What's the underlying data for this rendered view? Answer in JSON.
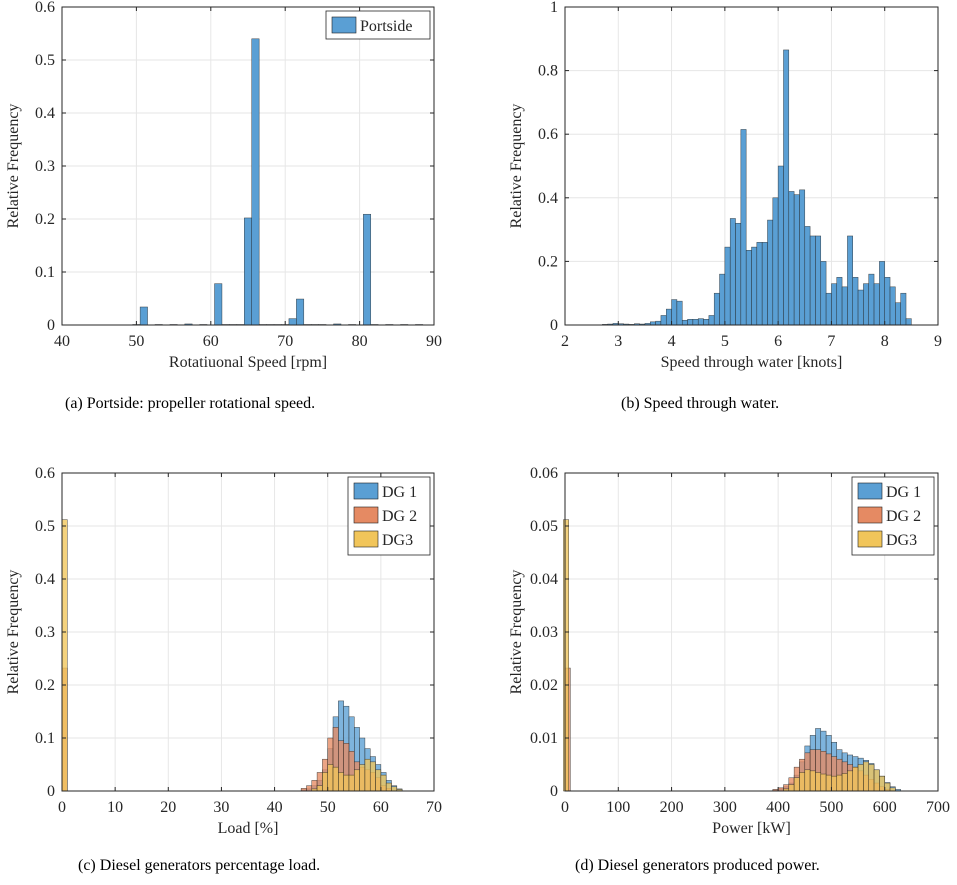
{
  "captions": [
    "(a)  Portside: propeller rotational speed.",
    "(b)  Speed through water.",
    "(c)  Diesel generators percentage load.",
    "(d)  Diesel generators produced power."
  ],
  "chart_data": [
    {
      "type": "bar",
      "xlabel": "Rotatiuonal Speed [rpm]",
      "ylabel": "Relative Frequency",
      "xlim": [
        40,
        90
      ],
      "ylim": [
        0,
        0.6
      ],
      "xticks": [
        40,
        50,
        60,
        70,
        80,
        90
      ],
      "yticks": [
        0,
        0.1,
        0.2,
        0.3,
        0.4,
        0.5,
        0.6
      ],
      "grid": true,
      "legend_position": "top-right",
      "bin_width": 1,
      "series": [
        {
          "name": "Portside",
          "color": "#5a9fd4",
          "x": [
            50,
            51,
            53,
            55,
            57,
            59,
            61,
            62,
            63,
            64,
            65,
            66,
            67,
            68,
            69,
            70,
            71,
            72,
            73,
            74,
            75,
            77,
            79,
            81,
            82,
            84,
            86,
            88
          ],
          "values": [
            0.001,
            0.034,
            0.001,
            0.001,
            0.002,
            0.001,
            0.078,
            0.001,
            0.001,
            0.001,
            0.202,
            0.54,
            0.001,
            0.001,
            0.001,
            0.001,
            0.012,
            0.049,
            0.001,
            0.001,
            0.001,
            0.002,
            0.001,
            0.209,
            0.001,
            0.001,
            0.001,
            0.001
          ]
        }
      ]
    },
    {
      "type": "bar",
      "xlabel": "Speed through water [knots]",
      "ylabel": "Relative Frequency",
      "xlim": [
        2,
        9
      ],
      "ylim": [
        0,
        1
      ],
      "xticks": [
        2,
        3,
        4,
        5,
        6,
        7,
        8,
        9
      ],
      "yticks": [
        0,
        0.2,
        0.4,
        0.6,
        0.8,
        1
      ],
      "grid": true,
      "bin_width": 0.1,
      "series": [
        {
          "name": "",
          "color": "#5a9fd4",
          "x": [
            2.75,
            2.85,
            2.95,
            3.05,
            3.15,
            3.25,
            3.35,
            3.45,
            3.55,
            3.65,
            3.75,
            3.85,
            3.95,
            4.05,
            4.15,
            4.25,
            4.35,
            4.45,
            4.55,
            4.65,
            4.75,
            4.85,
            4.95,
            5.05,
            5.15,
            5.25,
            5.35,
            5.45,
            5.55,
            5.65,
            5.75,
            5.85,
            5.95,
            6.05,
            6.15,
            6.25,
            6.35,
            6.45,
            6.55,
            6.65,
            6.75,
            6.85,
            6.95,
            7.05,
            7.15,
            7.25,
            7.35,
            7.45,
            7.55,
            7.65,
            7.75,
            7.85,
            7.95,
            8.05,
            8.15,
            8.25,
            8.35,
            8.45
          ],
          "values": [
            0.002,
            0.003,
            0.005,
            0.004,
            0.003,
            0.002,
            0.004,
            0.003,
            0.005,
            0.01,
            0.012,
            0.03,
            0.05,
            0.08,
            0.075,
            0.015,
            0.018,
            0.018,
            0.02,
            0.018,
            0.03,
            0.1,
            0.16,
            0.245,
            0.335,
            0.32,
            0.615,
            0.235,
            0.245,
            0.26,
            0.26,
            0.33,
            0.4,
            0.5,
            0.865,
            0.42,
            0.41,
            0.425,
            0.31,
            0.28,
            0.28,
            0.2,
            0.1,
            0.13,
            0.15,
            0.12,
            0.28,
            0.15,
            0.11,
            0.13,
            0.16,
            0.13,
            0.2,
            0.15,
            0.12,
            0.07,
            0.1,
            0.02
          ]
        }
      ]
    },
    {
      "type": "bar",
      "xlabel": "Load [%]",
      "ylabel": "Relative Frequency",
      "xlim": [
        0,
        70
      ],
      "ylim": [
        0,
        0.6
      ],
      "xticks": [
        0,
        10,
        20,
        30,
        40,
        50,
        60,
        70
      ],
      "yticks": [
        0,
        0.1,
        0.2,
        0.3,
        0.4,
        0.5,
        0.6
      ],
      "grid": true,
      "legend_position": "top-right",
      "bin_width": 1,
      "series": [
        {
          "name": "DG 1",
          "color": "#5a9fd4",
          "x": [
            0.5,
            45.5,
            46.5,
            47.5,
            48.5,
            49.5,
            50.5,
            51.5,
            52.5,
            53.5,
            54.5,
            55.5,
            56.5,
            57.5,
            58.5,
            59.5,
            60.5,
            61.5,
            62.5,
            63.5
          ],
          "values": [
            0.001,
            0.002,
            0.004,
            0.01,
            0.02,
            0.04,
            0.08,
            0.14,
            0.17,
            0.16,
            0.14,
            0.12,
            0.1,
            0.08,
            0.065,
            0.05,
            0.035,
            0.02,
            0.01,
            0.004
          ]
        },
        {
          "name": "DG 2",
          "color": "#e58a63",
          "x": [
            0.5,
            45.5,
            46.5,
            47.5,
            48.5,
            49.5,
            50.5,
            51.5,
            52.5,
            53.5,
            54.5,
            55.5,
            56.5,
            57.5,
            58.5,
            59.5,
            60.5,
            61.5
          ],
          "values": [
            0.232,
            0.005,
            0.01,
            0.02,
            0.035,
            0.06,
            0.1,
            0.12,
            0.095,
            0.09,
            0.075,
            0.055,
            0.045,
            0.04,
            0.035,
            0.025,
            0.01,
            0.005
          ]
        },
        {
          "name": "DG3",
          "color": "#f1c55a",
          "x": [
            0.5,
            47.5,
            48.5,
            49.5,
            50.5,
            51.5,
            52.5,
            53.5,
            54.5,
            55.5,
            56.5,
            57.5,
            58.5,
            59.5,
            60.5,
            61.5,
            62.5,
            63.5
          ],
          "values": [
            0.512,
            0.004,
            0.01,
            0.035,
            0.05,
            0.045,
            0.035,
            0.03,
            0.03,
            0.04,
            0.05,
            0.06,
            0.055,
            0.04,
            0.03,
            0.015,
            0.008,
            0.003
          ]
        }
      ]
    },
    {
      "type": "bar",
      "xlabel": "Power [kW]",
      "ylabel": "Relative Frequency",
      "xlim": [
        0,
        700
      ],
      "ylim": [
        0,
        0.06
      ],
      "xticks": [
        0,
        100,
        200,
        300,
        400,
        500,
        600,
        700
      ],
      "yticks": [
        0,
        0.01,
        0.02,
        0.03,
        0.04,
        0.05,
        0.06
      ],
      "grid": true,
      "legend_position": "top-right",
      "bin_width": 10,
      "series": [
        {
          "name": "DG 1",
          "color": "#5a9fd4",
          "x": [
            5,
            395,
            405,
            415,
            425,
            435,
            445,
            455,
            465,
            475,
            485,
            495,
            505,
            515,
            525,
            535,
            545,
            555,
            565,
            575,
            585,
            595,
            605,
            615,
            625
          ],
          "values": [
            0.0001,
            0.0002,
            0.0004,
            0.0008,
            0.0015,
            0.003,
            0.0055,
            0.0085,
            0.0105,
            0.0118,
            0.0113,
            0.0105,
            0.0092,
            0.0078,
            0.0072,
            0.0068,
            0.0065,
            0.0062,
            0.0058,
            0.0052,
            0.004,
            0.0028,
            0.0016,
            0.0008,
            0.0003
          ]
        },
        {
          "name": "DG 2",
          "color": "#e58a63",
          "x": [
            5,
            395,
            405,
            415,
            425,
            435,
            445,
            455,
            465,
            475,
            485,
            495,
            505,
            515,
            525,
            535,
            545,
            555,
            565,
            575,
            585,
            595,
            605
          ],
          "values": [
            0.0232,
            0.0003,
            0.0006,
            0.0012,
            0.0025,
            0.0045,
            0.006,
            0.0072,
            0.0078,
            0.0078,
            0.0075,
            0.007,
            0.0065,
            0.006,
            0.0055,
            0.005,
            0.0045,
            0.0038,
            0.003,
            0.0022,
            0.0015,
            0.0008,
            0.0003
          ]
        },
        {
          "name": "DG3",
          "color": "#f1c55a",
          "x": [
            2,
            415,
            425,
            435,
            445,
            455,
            465,
            475,
            485,
            495,
            505,
            515,
            525,
            535,
            545,
            555,
            565,
            575,
            585,
            595,
            605,
            615
          ],
          "values": [
            0.0512,
            0.0004,
            0.0012,
            0.0025,
            0.0035,
            0.004,
            0.0038,
            0.0035,
            0.0032,
            0.003,
            0.0028,
            0.003,
            0.0033,
            0.0038,
            0.0045,
            0.005,
            0.0055,
            0.005,
            0.004,
            0.0028,
            0.0015,
            0.0006
          ]
        }
      ]
    }
  ]
}
